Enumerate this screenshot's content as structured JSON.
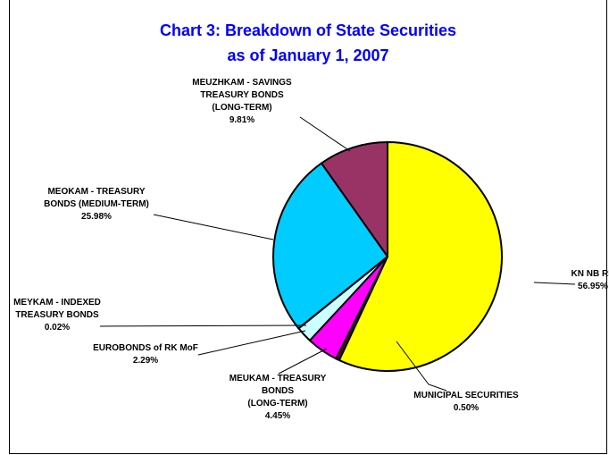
{
  "chart_data": {
    "type": "pie",
    "title": [
      "Chart 3: Breakdown of State Securities",
      "as of  January  1, 2007"
    ],
    "start_angle_deg": 0,
    "direction": "clockwise",
    "slices": [
      {
        "label": [
          "KN NB RK"
        ],
        "value": 56.95,
        "value_text": "56.95%",
        "color": "#ffff00"
      },
      {
        "label": [
          "MUNICIPAL SECURITIES"
        ],
        "value": 0.5,
        "value_text": "0.50%",
        "color": "#660033"
      },
      {
        "label": [
          "MEUKAM - TREASURY",
          "BONDS",
          "(LONG-TERM)"
        ],
        "value": 4.45,
        "value_text": "4.45%",
        "color": "#ff00ff"
      },
      {
        "label": [
          "EUROBONDS of RK MoF"
        ],
        "value": 2.29,
        "value_text": "2.29%",
        "color": "#ccffff"
      },
      {
        "label": [
          "MEYKAM - INDEXED",
          "TREASURY BONDS"
        ],
        "value": 0.02,
        "value_text": "0.02%",
        "color": "#ff8080"
      },
      {
        "label": [
          "MEOKAM - TREASURY",
          "BONDS (MEDIUM-TERM)"
        ],
        "value": 25.98,
        "value_text": "25.98%",
        "color": "#00ccff"
      },
      {
        "label": [
          "MEUZHKAM - SAVINGS",
          "TREASURY BONDS",
          "(LONG-TERM)"
        ],
        "value": 9.81,
        "value_text": "9.81%",
        "color": "#993366"
      }
    ]
  }
}
